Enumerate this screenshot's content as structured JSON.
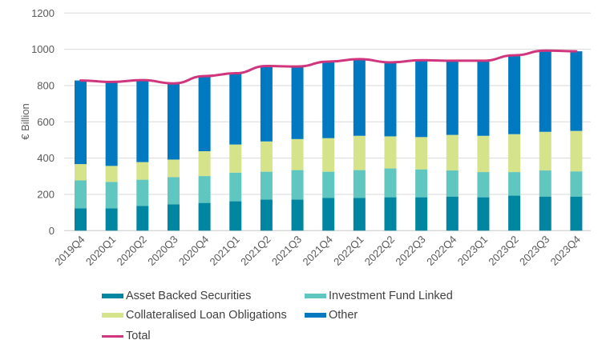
{
  "chart_data": {
    "type": "bar",
    "stacked": true,
    "title": "",
    "xlabel": "",
    "ylabel": "€ Billion",
    "ylim": [
      0,
      1200
    ],
    "yticks": [
      "0",
      "200",
      "400",
      "600",
      "800",
      "1000",
      "1200"
    ],
    "ytick_values": [
      0,
      200,
      400,
      600,
      800,
      1000,
      1200
    ],
    "grid": true,
    "legend_position": "bottom",
    "categories": [
      "2019Q4",
      "2020Q1",
      "2020Q2",
      "2020Q3",
      "2020Q4",
      "2021Q1",
      "2021Q2",
      "2021Q3",
      "2021Q4",
      "2022Q1",
      "2022Q2",
      "2022Q3",
      "2022Q4",
      "2023Q1",
      "2023Q2",
      "2023Q3",
      "2023Q4"
    ],
    "series": [
      {
        "name": "Asset Backed Securities",
        "color": "#0086A0",
        "kind": "bar",
        "values": [
          123,
          123,
          136,
          145,
          153,
          162,
          171,
          171,
          180,
          180,
          184,
          184,
          188,
          184,
          193,
          188,
          188
        ]
      },
      {
        "name": "Investment Fund Linked",
        "color": "#5FC6C0",
        "kind": "bar",
        "values": [
          154,
          146,
          145,
          150,
          148,
          158,
          154,
          163,
          145,
          154,
          159,
          154,
          144,
          139,
          130,
          144,
          139
        ]
      },
      {
        "name": "Collateralised Loan Obligations",
        "color": "#D5E38B",
        "kind": "bar",
        "values": [
          90,
          88,
          97,
          97,
          137,
          155,
          167,
          171,
          185,
          189,
          177,
          178,
          196,
          200,
          209,
          213,
          223
        ]
      },
      {
        "name": "Other",
        "color": "#0079C1",
        "kind": "bar",
        "values": [
          461,
          463,
          452,
          420,
          414,
          393,
          416,
          400,
          422,
          423,
          408,
          424,
          409,
          414,
          435,
          448,
          439
        ]
      },
      {
        "name": "Total",
        "color": "#D0357D",
        "kind": "line",
        "values": [
          828,
          820,
          830,
          812,
          852,
          868,
          908,
          905,
          932,
          946,
          928,
          940,
          937,
          937,
          967,
          993,
          989
        ]
      }
    ]
  }
}
